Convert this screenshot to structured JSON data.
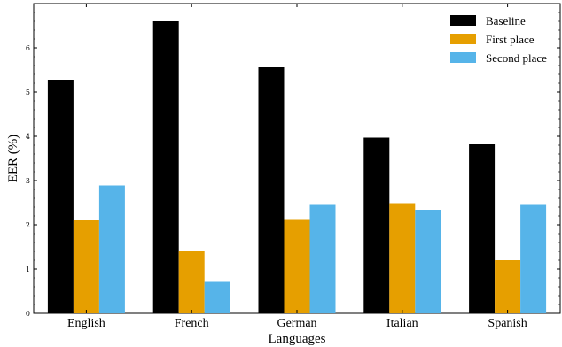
{
  "chart_data": {
    "type": "bar",
    "title": "",
    "xlabel": "Languages",
    "ylabel": "EER (%)",
    "categories": [
      "English",
      "French",
      "German",
      "Italian",
      "Spanish"
    ],
    "ylim": [
      0,
      7
    ],
    "yticks": [
      "0",
      "1",
      "2",
      "3",
      "4",
      "5",
      "6"
    ],
    "grid": false,
    "legend_position": "top-right",
    "series": [
      {
        "name": "Baseline",
        "color": "#000000",
        "values": [
          5.28,
          6.6,
          5.56,
          3.97,
          3.82
        ]
      },
      {
        "name": "First place",
        "color": "#e69f00",
        "values": [
          2.1,
          1.42,
          2.13,
          2.49,
          1.2
        ]
      },
      {
        "name": "Second place",
        "color": "#56b4e9",
        "values": [
          2.89,
          0.71,
          2.45,
          2.34,
          2.45
        ]
      }
    ]
  }
}
